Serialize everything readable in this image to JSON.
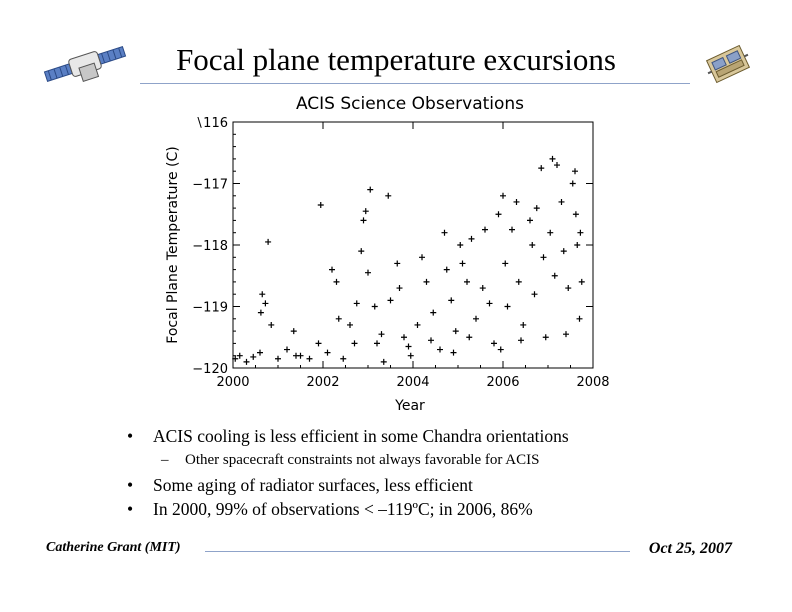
{
  "slide": {
    "title": "Focal plane temperature excursions"
  },
  "chart_data": {
    "type": "scatter",
    "marker": "plus",
    "title": "ACIS Science Observations",
    "xlabel": "Year",
    "ylabel": "Focal Plane Temperature (C)",
    "xlim": [
      2000,
      2008
    ],
    "ylim": [
      -120,
      -116
    ],
    "x_ticks": [
      2000,
      2002,
      2004,
      2006,
      2008
    ],
    "y_ticks": [
      -120,
      -119,
      -118,
      -117,
      -116
    ],
    "x_tick_labels": [
      "2000",
      "2002",
      "2004",
      "2006",
      "2008"
    ],
    "y_tick_labels": [
      "−120",
      "−119",
      "−118",
      "−117",
      "∖116"
    ],
    "grid": false,
    "series": [
      {
        "points": [
          [
            2000.05,
            -119.85
          ],
          [
            2000.15,
            -119.8
          ],
          [
            2000.3,
            -119.9
          ],
          [
            2000.45,
            -119.82
          ],
          [
            2000.6,
            -119.75
          ],
          [
            2000.62,
            -119.1
          ],
          [
            2000.65,
            -118.8
          ],
          [
            2000.72,
            -118.95
          ],
          [
            2000.78,
            -117.95
          ],
          [
            2000.85,
            -119.3
          ],
          [
            2001.0,
            -119.85
          ],
          [
            2001.2,
            -119.7
          ],
          [
            2001.35,
            -119.4
          ],
          [
            2001.5,
            -119.8
          ],
          [
            2001.7,
            -119.85
          ],
          [
            2001.9,
            -119.6
          ],
          [
            2001.95,
            -117.35
          ],
          [
            2002.1,
            -119.75
          ],
          [
            2002.2,
            -118.4
          ],
          [
            2002.3,
            -118.6
          ],
          [
            2002.35,
            -119.2
          ],
          [
            2002.45,
            -119.85
          ],
          [
            2002.6,
            -119.3
          ],
          [
            2002.75,
            -118.95
          ],
          [
            2002.85,
            -118.1
          ],
          [
            2002.9,
            -117.6
          ],
          [
            2002.95,
            -117.45
          ],
          [
            2003.0,
            -118.45
          ],
          [
            2003.05,
            -117.1
          ],
          [
            2003.15,
            -119.0
          ],
          [
            2003.2,
            -119.6
          ],
          [
            2003.35,
            -119.9
          ],
          [
            2003.45,
            -117.2
          ],
          [
            2003.5,
            -118.9
          ],
          [
            2003.65,
            -118.3
          ],
          [
            2003.7,
            -118.7
          ],
          [
            2003.8,
            -119.5
          ],
          [
            2003.95,
            -119.8
          ],
          [
            2004.1,
            -119.3
          ],
          [
            2004.2,
            -118.2
          ],
          [
            2004.3,
            -118.6
          ],
          [
            2004.45,
            -119.1
          ],
          [
            2004.6,
            -119.7
          ],
          [
            2004.7,
            -117.8
          ],
          [
            2004.75,
            -118.4
          ],
          [
            2004.85,
            -118.9
          ],
          [
            2004.95,
            -119.4
          ],
          [
            2005.05,
            -118.0
          ],
          [
            2005.1,
            -118.3
          ],
          [
            2005.2,
            -118.6
          ],
          [
            2005.3,
            -117.9
          ],
          [
            2005.4,
            -119.2
          ],
          [
            2005.55,
            -118.7
          ],
          [
            2005.6,
            -117.75
          ],
          [
            2005.7,
            -118.95
          ],
          [
            2005.8,
            -119.6
          ],
          [
            2005.9,
            -117.5
          ],
          [
            2006.0,
            -117.2
          ],
          [
            2006.05,
            -118.3
          ],
          [
            2006.1,
            -119.0
          ],
          [
            2006.2,
            -117.75
          ],
          [
            2006.3,
            -117.3
          ],
          [
            2006.35,
            -118.6
          ],
          [
            2006.45,
            -119.3
          ],
          [
            2006.6,
            -117.6
          ],
          [
            2006.65,
            -118.0
          ],
          [
            2006.7,
            -118.8
          ],
          [
            2006.75,
            -117.4
          ],
          [
            2006.85,
            -116.75
          ],
          [
            2006.9,
            -118.2
          ],
          [
            2006.95,
            -119.5
          ],
          [
            2007.05,
            -117.8
          ],
          [
            2007.1,
            -116.6
          ],
          [
            2007.15,
            -118.5
          ],
          [
            2007.2,
            -116.7
          ],
          [
            2007.3,
            -117.3
          ],
          [
            2007.35,
            -118.1
          ],
          [
            2007.45,
            -118.7
          ],
          [
            2007.55,
            -117.0
          ],
          [
            2007.6,
            -116.8
          ],
          [
            2007.62,
            -117.5
          ],
          [
            2007.65,
            -118.0
          ],
          [
            2007.7,
            -119.2
          ],
          [
            2007.72,
            -117.8
          ],
          [
            2007.75,
            -118.6
          ],
          [
            2001.4,
            -119.8
          ],
          [
            2002.7,
            -119.6
          ],
          [
            2003.9,
            -119.65
          ],
          [
            2004.4,
            -119.55
          ],
          [
            2005.25,
            -119.5
          ],
          [
            2006.4,
            -119.55
          ],
          [
            2007.4,
            -119.45
          ],
          [
            2004.9,
            -119.75
          ],
          [
            2003.3,
            -119.45
          ],
          [
            2005.95,
            -119.7
          ]
        ]
      }
    ]
  },
  "bullets": [
    {
      "level": 1,
      "text": "ACIS cooling is less efficient in some Chandra orientations"
    },
    {
      "level": 2,
      "text": "Other spacecraft constraints not always favorable for ACIS"
    },
    {
      "level": 1,
      "text": "Some aging of radiator surfaces, less efficient"
    },
    {
      "level": 1,
      "text": "In 2000, 99% of observations < –119ºC; in 2006, 86%"
    }
  ],
  "footer": {
    "author": "Catherine Grant (MIT)",
    "date": "Oct 25, 2007"
  },
  "colors": {
    "rule": "#8fa3c9",
    "marker": "#000000"
  }
}
